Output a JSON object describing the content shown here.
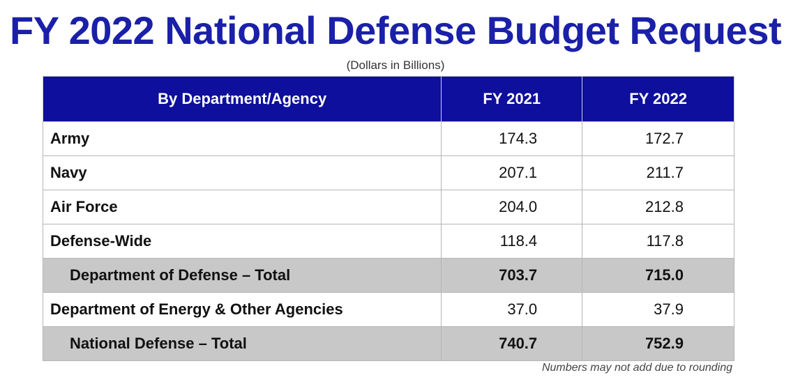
{
  "title": "FY 2022 National Defense Budget Request",
  "subtitle": "(Dollars in Billions)",
  "table": {
    "headers": [
      "By Department/Agency",
      "FY 2021",
      "FY 2022"
    ],
    "rows": [
      {
        "label": "Army",
        "fy2021": "174.3",
        "fy2022": "172.7"
      },
      {
        "label": "Navy",
        "fy2021": "207.1",
        "fy2022": "211.7"
      },
      {
        "label": "Air Force",
        "fy2021": "204.0",
        "fy2022": "212.8"
      },
      {
        "label": "Defense-Wide",
        "fy2021": "118.4",
        "fy2022": "117.8"
      },
      {
        "label": "Department of Defense – Total",
        "fy2021": "703.7",
        "fy2022": "715.0"
      },
      {
        "label": "Department of Energy & Other Agencies",
        "fy2021": "37.0",
        "fy2022": "37.9"
      },
      {
        "label": "National Defense – Total",
        "fy2021": "740.7",
        "fy2022": "752.9"
      }
    ]
  },
  "footnote": "Numbers may not add due to rounding",
  "colors": {
    "title": "#1a20a8",
    "header_bg": "#0e0f9c",
    "subtotal_bg": "#c8c8c8"
  }
}
